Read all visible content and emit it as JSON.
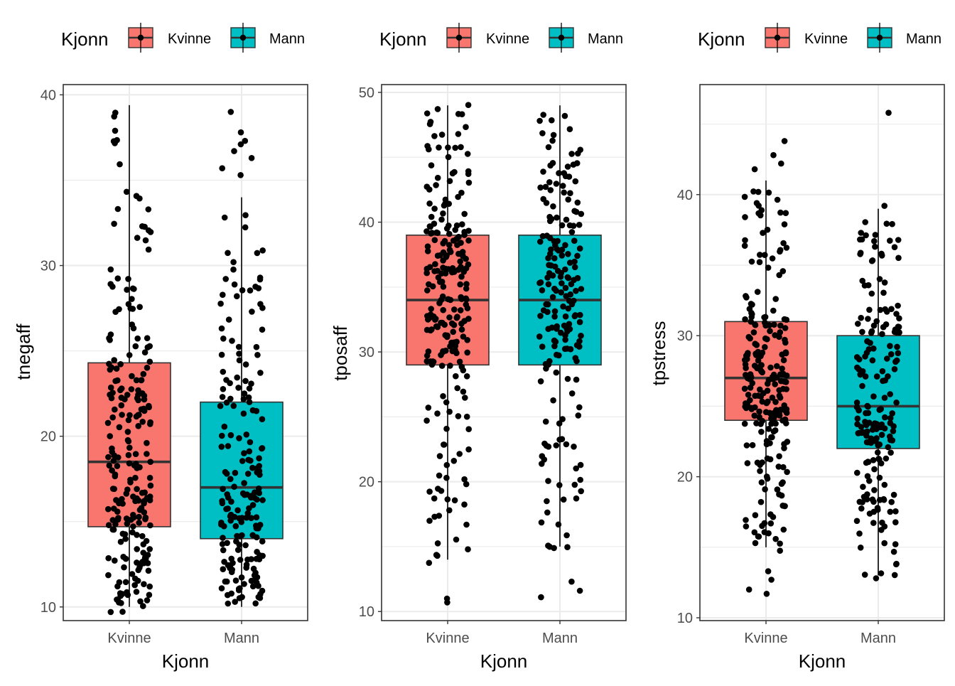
{
  "colors": {
    "kvinne": "#F8766D",
    "mann": "#00BFC4",
    "point": "#000000",
    "grid": "#EBEBEB",
    "border": "#333333",
    "tick_text": "#4D4D4D"
  },
  "chart_data": [
    {
      "type": "box",
      "title": "",
      "xlabel": "Kjonn",
      "ylabel": "tnegaff",
      "legend_title": "Kjonn",
      "legend_labels": [
        "Kvinne",
        "Mann"
      ],
      "legend_placement": "top",
      "categories": [
        "Kvinne",
        "Mann"
      ],
      "ylim": [
        9.2,
        40.6
      ],
      "yticks": [
        10,
        20,
        30,
        40
      ],
      "boxes": [
        {
          "name": "Kvinne",
          "whisker_low": 10,
          "q1": 14.7,
          "median": 18.5,
          "q3": 24.3,
          "whisker_high": 39.4,
          "n_points": 230,
          "seed": 11
        },
        {
          "name": "Mann",
          "whisker_low": 10,
          "q1": 14,
          "median": 17,
          "q3": 22,
          "whisker_high": 34,
          "n_points": 190,
          "seed": 23,
          "outliers": [
            35.3,
            35.7,
            36.3,
            36.7,
            37.1,
            37.3,
            37.8,
            39.0
          ]
        }
      ]
    },
    {
      "type": "box",
      "title": "",
      "xlabel": "Kjonn",
      "ylabel": "tposaff",
      "legend_title": "Kjonn",
      "legend_labels": [
        "Kvinne",
        "Mann"
      ],
      "legend_placement": "top",
      "categories": [
        "Kvinne",
        "Mann"
      ],
      "ylim": [
        9.3,
        50.6
      ],
      "yticks": [
        10,
        20,
        30,
        40,
        50
      ],
      "boxes": [
        {
          "name": "Kvinne",
          "whisker_low": 14,
          "q1": 29,
          "median": 34,
          "q3": 39,
          "whisker_high": 49,
          "n_points": 230,
          "seed": 37,
          "outliers": [
            10.7,
            11.0
          ]
        },
        {
          "name": "Mann",
          "whisker_low": 15,
          "q1": 29,
          "median": 34,
          "q3": 39,
          "whisker_high": 49,
          "n_points": 190,
          "seed": 41,
          "outliers": [
            11.1,
            11.6,
            12.3
          ]
        }
      ]
    },
    {
      "type": "box",
      "title": "",
      "xlabel": "Kjonn",
      "ylabel": "tpstress",
      "legend_title": "Kjonn",
      "legend_labels": [
        "Kvinne",
        "Mann"
      ],
      "legend_placement": "top",
      "categories": [
        "Kvinne",
        "Mann"
      ],
      "ylim": [
        9.8,
        47.8
      ],
      "yticks": [
        10,
        20,
        30,
        40
      ],
      "boxes": [
        {
          "name": "Kvinne",
          "whisker_low": 15,
          "q1": 24,
          "median": 27,
          "q3": 31,
          "whisker_high": 41,
          "n_points": 230,
          "seed": 53,
          "outliers": [
            11.7,
            12.0,
            12.7,
            13.3,
            41.8,
            42.2,
            42.8,
            43.8
          ]
        },
        {
          "name": "Mann",
          "whisker_low": 13,
          "q1": 22,
          "median": 25,
          "q3": 30,
          "whisker_high": 39,
          "n_points": 190,
          "seed": 67,
          "outliers": [
            12.8,
            39.2,
            45.8
          ]
        }
      ]
    }
  ]
}
